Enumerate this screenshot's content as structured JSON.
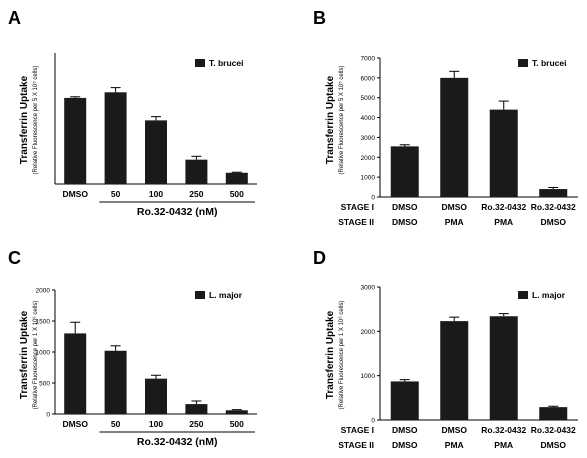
{
  "chart_data": [
    {
      "panel_letter": "A",
      "type": "bar",
      "ylabel": "Transferrin Uptake",
      "ylabel_sub": "(Relative Fluorescence per 5 X 10⁵ cells)",
      "categories": [
        "DMSO",
        "50",
        "100",
        "250",
        "500"
      ],
      "xlabel": "Ro.32-0432 (nM)",
      "series": [
        {
          "name": "T. brucei",
          "values": [
            4600,
            4900,
            3400,
            1300,
            600
          ],
          "errors": [
            60,
            250,
            200,
            180,
            30
          ]
        }
      ],
      "ylim": [
        0,
        7000
      ],
      "yticks": [],
      "grid": false,
      "legend": "top-right",
      "colors": {
        "bar": "#1a1a1a"
      }
    },
    {
      "panel_letter": "B",
      "type": "bar",
      "ylabel": "Transferrin Uptake",
      "ylabel_sub": "(Relative Fluorescence per 5 X 10⁵ cells)",
      "categories": [
        "DMSO",
        "DMSO",
        "Ro.32-0432",
        "Ro.32-0432"
      ],
      "stage_labels": [
        "STAGE I",
        "STAGE II"
      ],
      "stage1": [
        "DMSO",
        "DMSO",
        "Ro.32-0432",
        "Ro.32-0432"
      ],
      "stage2": [
        "DMSO",
        "PMA",
        "PMA",
        "DMSO"
      ],
      "series": [
        {
          "name": "T. brucei",
          "values": [
            2550,
            6000,
            4400,
            400
          ],
          "errors": [
            80,
            330,
            430,
            80
          ]
        }
      ],
      "ylim": [
        0,
        7000
      ],
      "yticks": [
        "0",
        "1000",
        "2000",
        "3000",
        "4000",
        "5000",
        "6000",
        "7000"
      ],
      "grid": false,
      "legend": "top-right",
      "colors": {
        "bar": "#1a1a1a"
      }
    },
    {
      "panel_letter": "C",
      "type": "bar",
      "ylabel": "Transferrin Uptake",
      "ylabel_sub": "(Relative Fluorescence per 1 X 10⁶ cells)",
      "categories": [
        "DMSO",
        "50",
        "100",
        "250",
        "500"
      ],
      "xlabel": "Ro.32-0432 (nM)",
      "series": [
        {
          "name": "L. major",
          "values": [
            1300,
            1020,
            570,
            160,
            60
          ],
          "errors": [
            180,
            80,
            55,
            50,
            10
          ]
        }
      ],
      "ylim": [
        0,
        2000
      ],
      "yticks": [
        "0",
        "500",
        "1000",
        "1500",
        "2000"
      ],
      "grid": false,
      "legend": "top-right",
      "colors": {
        "bar": "#1a1a1a"
      }
    },
    {
      "panel_letter": "D",
      "type": "bar",
      "ylabel": "Transferrin Uptake",
      "ylabel_sub": "(Relative Fluorescence per 1 X 10⁶ cells)",
      "categories": [
        "DMSO",
        "DMSO",
        "Ro.32-0432",
        "Ro.32-0432"
      ],
      "stage_labels": [
        "STAGE I",
        "STAGE II"
      ],
      "stage1": [
        "DMSO",
        "DMSO",
        "Ro.32-0432",
        "Ro.32-0432"
      ],
      "stage2": [
        "DMSO",
        "PMA",
        "PMA",
        "DMSO"
      ],
      "series": [
        {
          "name": "L. major",
          "values": [
            870,
            2230,
            2340,
            290
          ],
          "errors": [
            40,
            90,
            60,
            20
          ]
        }
      ],
      "ylim": [
        0,
        3000
      ],
      "yticks": [
        "0",
        "1000",
        "2000",
        "3000"
      ],
      "grid": false,
      "legend": "top-right",
      "colors": {
        "bar": "#1a1a1a"
      }
    }
  ]
}
